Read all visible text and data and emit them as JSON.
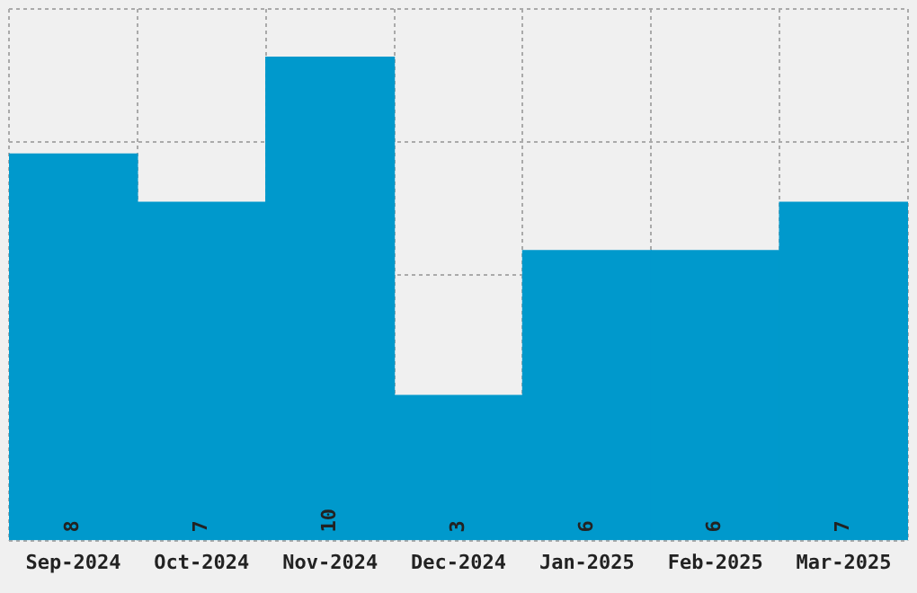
{
  "chart_data": {
    "type": "bar",
    "categories": [
      "Sep-2024",
      "Oct-2024",
      "Nov-2024",
      "Dec-2024",
      "Jan-2025",
      "Feb-2025",
      "Mar-2025"
    ],
    "values": [
      8,
      7,
      10,
      3,
      6,
      6,
      7
    ],
    "color": "#0099cc",
    "ylim": [
      0,
      11
    ],
    "tick_labels": "x",
    "grid": true,
    "data_labels": true
  }
}
